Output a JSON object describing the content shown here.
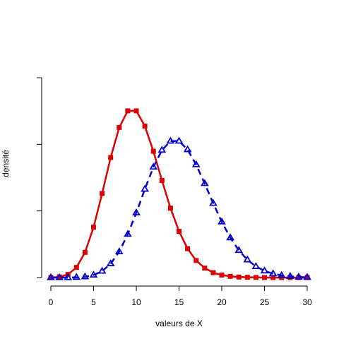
{
  "chart_data": {
    "type": "line",
    "title": "",
    "xlabel": "valeurs de X",
    "ylabel": "densité",
    "xlim": [
      0,
      30
    ],
    "ylim": [
      0,
      0.15
    ],
    "x_ticks": [
      0,
      5,
      10,
      15,
      20,
      25,
      30
    ],
    "x_tick_labels": [
      "0",
      "5",
      "10",
      "15",
      "20",
      "25",
      "30"
    ],
    "y_ticks": [
      0,
      0.05,
      0.1,
      0.15
    ],
    "y_tick_labels_shown": false,
    "grid": false,
    "legend": "none",
    "x": [
      0,
      1,
      2,
      3,
      4,
      5,
      6,
      7,
      8,
      9,
      10,
      11,
      12,
      13,
      14,
      15,
      16,
      17,
      18,
      19,
      20,
      21,
      22,
      23,
      24,
      25,
      26,
      27,
      28,
      29,
      30
    ],
    "series": [
      {
        "color": "#dd0000",
        "line_style": "solid",
        "marker": "filled-square",
        "values": [
          0.0,
          0.0005,
          0.0023,
          0.0076,
          0.0189,
          0.0378,
          0.0631,
          0.0901,
          0.1126,
          0.1251,
          0.1251,
          0.1137,
          0.0948,
          0.0729,
          0.0521,
          0.0347,
          0.0217,
          0.0128,
          0.0071,
          0.0037,
          0.0019,
          0.0009,
          0.0004,
          0.0002,
          0.0001,
          0.0,
          0.0,
          0.0,
          0.0,
          0.0,
          0.0
        ]
      },
      {
        "color": "#0000cc",
        "line_style": "dashed",
        "marker": "open-triangle",
        "values": [
          0.0,
          0.0,
          0.0,
          0.0002,
          0.0006,
          0.0019,
          0.0048,
          0.0104,
          0.0194,
          0.0325,
          0.0486,
          0.0663,
          0.0829,
          0.0956,
          0.1024,
          0.1024,
          0.096,
          0.0847,
          0.0706,
          0.0557,
          0.0418,
          0.0299,
          0.0204,
          0.0133,
          0.0083,
          0.005,
          0.0029,
          0.0016,
          0.0009,
          0.0004,
          0.0002
        ]
      }
    ]
  }
}
